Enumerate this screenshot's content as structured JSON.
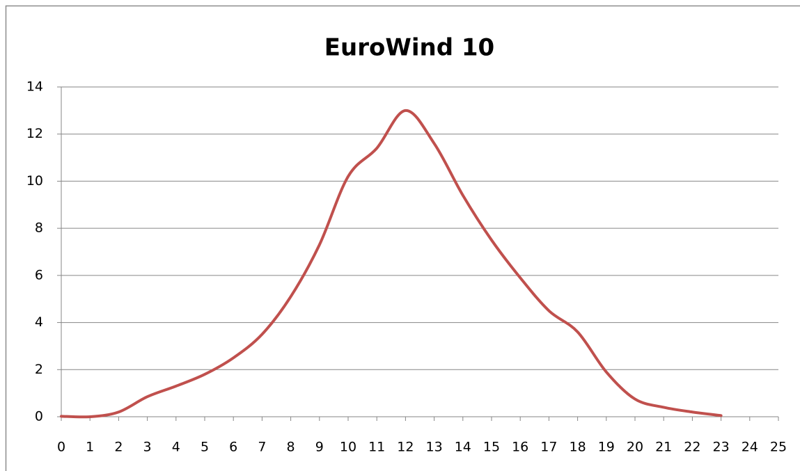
{
  "chart_data": {
    "type": "line",
    "title": "EuroWind 10",
    "x": [
      0,
      1,
      2,
      3,
      4,
      5,
      6,
      7,
      8,
      9,
      10,
      11,
      12,
      13,
      14,
      15,
      16,
      17,
      18,
      19,
      20,
      21,
      22,
      23
    ],
    "series": [
      {
        "name": "EuroWind 10",
        "color": "#c0504d",
        "values": [
          0.02,
          0,
          0.2,
          0.85,
          1.3,
          1.8,
          2.5,
          3.5,
          5.1,
          7.3,
          10.2,
          11.4,
          13,
          11.6,
          9.4,
          7.5,
          5.9,
          4.5,
          3.6,
          1.9,
          0.75,
          0.4,
          0.2,
          0.05
        ]
      }
    ],
    "xlim": [
      0,
      25
    ],
    "xticks": [
      0,
      1,
      2,
      3,
      4,
      5,
      6,
      7,
      8,
      9,
      10,
      11,
      12,
      13,
      14,
      15,
      16,
      17,
      18,
      19,
      20,
      21,
      22,
      23,
      24,
      25
    ],
    "ylim": [
      0,
      14
    ],
    "yticks": [
      0,
      2,
      4,
      6,
      8,
      10,
      12,
      14
    ],
    "grid": true,
    "smooth": true
  }
}
